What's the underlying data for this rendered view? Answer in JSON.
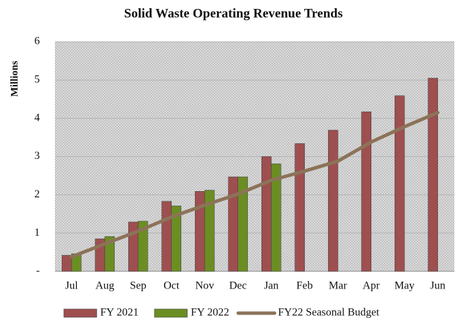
{
  "chart_data": {
    "type": "bar",
    "title": "Solid Waste Operating Revenue Trends",
    "y_label": "Millions",
    "categories": [
      "Jul",
      "Aug",
      "Sep",
      "Oct",
      "Nov",
      "Dec",
      "Jan",
      "Feb",
      "Mar",
      "Apr",
      "May",
      "Jun"
    ],
    "series": [
      {
        "name": "FY 2021",
        "type": "bar",
        "color": "#9e4f50",
        "values": [
          0.42,
          0.85,
          1.29,
          1.83,
          2.09,
          2.47,
          3.0,
          3.34,
          3.69,
          4.17,
          4.59,
          5.05
        ]
      },
      {
        "name": "FY 2022",
        "type": "bar",
        "color": "#6b8e23",
        "values": [
          0.46,
          0.91,
          1.31,
          1.71,
          2.12,
          2.47,
          2.81,
          null,
          null,
          null,
          null,
          null
        ]
      },
      {
        "name": "FY22 Seasonal Budget",
        "type": "line",
        "color": "#8c7358",
        "values": [
          0.38,
          0.72,
          1.05,
          1.42,
          1.73,
          2.02,
          2.38,
          2.62,
          2.88,
          3.38,
          3.78,
          4.15
        ]
      }
    ],
    "ylim": [
      0,
      6
    ],
    "yticks": [
      {
        "value": 0,
        "label": "-"
      },
      1,
      2,
      3,
      4,
      5,
      6
    ],
    "grid": true,
    "legend": "bottom"
  }
}
